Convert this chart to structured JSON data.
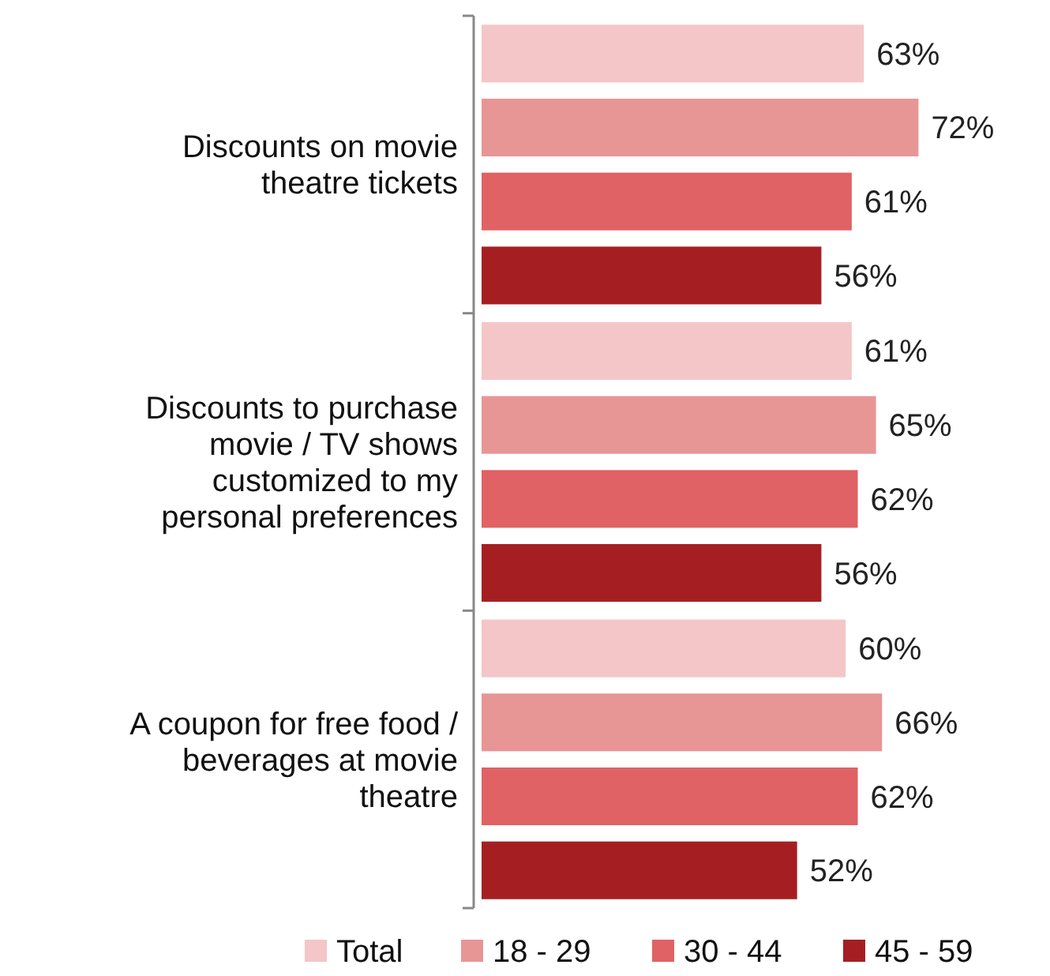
{
  "chart_data": {
    "type": "bar",
    "orientation": "horizontal",
    "categories": [
      "Discounts on movie theatre tickets",
      "Discounts to purchase movie / TV shows customized to my personal preferences",
      "A coupon for free food / beverages at movie theatre"
    ],
    "series": [
      {
        "name": "Total",
        "color": "#f4c6c8",
        "values": [
          63,
          61,
          60
        ],
        "value_labels": [
          "63%",
          "61%",
          "60%"
        ]
      },
      {
        "name": "18 - 29",
        "color": "#e89596",
        "values": [
          72,
          65,
          66
        ],
        "value_labels": [
          "72%",
          "65%",
          "66%"
        ]
      },
      {
        "name": "30 - 44",
        "color": "#e06264",
        "values": [
          61,
          62,
          62
        ],
        "value_labels": [
          "61%",
          "62%",
          "62%"
        ]
      },
      {
        "name": "45 - 59",
        "color": "#a51f22",
        "values": [
          56,
          56,
          52
        ],
        "value_labels": [
          "56%",
          "56%",
          "52%"
        ]
      }
    ],
    "legend": "bottom"
  }
}
